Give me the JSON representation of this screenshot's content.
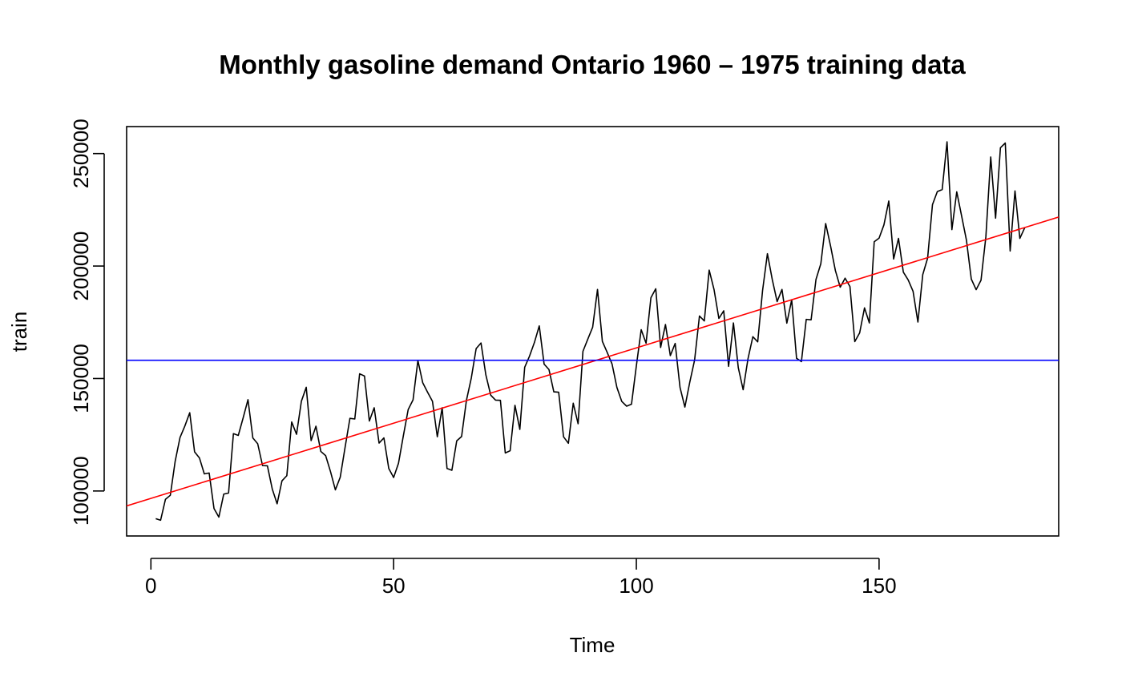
{
  "chart_data": {
    "type": "line",
    "title": "Monthly gasoline demand Ontario 1960 – 1975 training data",
    "xlabel": "Time",
    "ylabel": "train",
    "xlim": [
      -5,
      187
    ],
    "ylim": [
      80000,
      262000
    ],
    "xticks": [
      0,
      50,
      100,
      150
    ],
    "yticks": [
      100000,
      150000,
      200000,
      250000
    ],
    "grid": false,
    "legend": "none",
    "x_start": 1,
    "series": [
      {
        "color": "#000000",
        "values": [
          87700,
          87000,
          96300,
          98100,
          113200,
          123800,
          128900,
          134800,
          117400,
          114700,
          107600,
          108000,
          92200,
          88400,
          98600,
          99100,
          125500,
          124700,
          132500,
          140600,
          123600,
          121000,
          111300,
          111200,
          100900,
          94300,
          104500,
          106800,
          130700,
          125200,
          139900,
          146100,
          122400,
          128800,
          117600,
          115700,
          108600,
          100500,
          106100,
          119400,
          132300,
          132000,
          152100,
          151100,
          131100,
          137000,
          121300,
          123600,
          110000,
          106000,
          112300,
          124500,
          136200,
          140500,
          158000,
          148100,
          143900,
          139900,
          124100,
          137000,
          110000,
          109200,
          122300,
          124200,
          140300,
          150200,
          163300,
          165800,
          151600,
          142600,
          140400,
          140300,
          116900,
          117900,
          138100,
          127400,
          155000,
          160000,
          166000,
          173400,
          156400,
          154000,
          144100,
          143900,
          124100,
          121200,
          139000,
          129900,
          162100,
          167500,
          172800,
          189600,
          166500,
          161600,
          156400,
          146000,
          139800,
          137700,
          138600,
          155600,
          171700,
          165700,
          185900,
          189900,
          163800,
          174000,
          160200,
          165600,
          146000,
          137300,
          148300,
          158200,
          177800,
          175600,
          198200,
          189600,
          176700,
          180100,
          155400,
          174700,
          154800,
          145000,
          158800,
          168600,
          166300,
          189100,
          205500,
          194000,
          184200,
          189600,
          174600,
          185000,
          159000,
          157500,
          176300,
          176100,
          194000,
          201000,
          218900,
          209000,
          198000,
          190600,
          194600,
          190900,
          166400,
          170300,
          181400,
          174700,
          210800,
          212400,
          218300,
          228900,
          203100,
          212300,
          197300,
          193800,
          188800,
          175100,
          196200,
          203500,
          227300,
          233100,
          234000,
          255200,
          216200,
          233000,
          222300,
          211500,
          194200,
          189500,
          193700,
          213000,
          248500,
          221300,
          252600,
          254700,
          206700,
          233400,
          212300,
          217000
        ]
      },
      {
        "color": "#ff0000",
        "intercept": 96700,
        "slope": 669
      },
      {
        "color": "#0000ff",
        "level": 158100
      }
    ]
  }
}
